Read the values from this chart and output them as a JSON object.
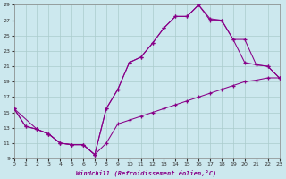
{
  "xlabel": "Windchill (Refroidissement éolien,°C)",
  "bg_color": "#cce8ee",
  "grid_color": "#aacccc",
  "line_color": "#880088",
  "xlim": [
    0,
    23
  ],
  "ylim": [
    9,
    29
  ],
  "xticks": [
    0,
    1,
    2,
    3,
    4,
    5,
    6,
    7,
    8,
    9,
    10,
    11,
    12,
    13,
    14,
    15,
    16,
    17,
    18,
    19,
    20,
    21,
    22,
    23
  ],
  "yticks": [
    9,
    11,
    13,
    15,
    17,
    19,
    21,
    23,
    25,
    27,
    29
  ],
  "s1x": [
    0,
    1,
    2,
    3,
    4,
    5,
    6,
    7,
    8,
    9,
    10,
    11,
    12,
    13,
    14,
    15,
    16,
    17,
    18,
    19,
    20,
    21,
    22,
    23
  ],
  "s1y": [
    15.5,
    13.2,
    12.8,
    12.2,
    11.0,
    10.8,
    10.8,
    9.5,
    11.0,
    13.5,
    14.0,
    14.5,
    15.0,
    15.5,
    16.0,
    16.5,
    17.0,
    17.5,
    18.0,
    18.5,
    19.0,
    19.2,
    19.5,
    19.5
  ],
  "s2x": [
    0,
    1,
    2,
    3,
    4,
    5,
    6,
    7,
    8,
    9,
    10,
    11,
    12,
    13,
    14,
    15,
    16,
    17,
    18,
    19,
    20,
    21,
    22,
    23
  ],
  "s2y": [
    15.5,
    13.2,
    12.8,
    12.2,
    11.0,
    10.8,
    10.8,
    9.5,
    15.5,
    18.0,
    21.5,
    22.2,
    24.0,
    26.0,
    27.5,
    27.5,
    29.0,
    27.0,
    27.0,
    24.5,
    21.5,
    21.2,
    21.0,
    19.5
  ],
  "s3x": [
    0,
    2,
    3,
    4,
    5,
    6,
    7,
    8,
    9,
    10,
    11,
    12,
    13,
    14,
    15,
    16,
    17,
    18,
    19,
    20,
    21,
    22,
    23
  ],
  "s3y": [
    15.5,
    12.8,
    12.2,
    11.0,
    10.8,
    10.8,
    9.5,
    15.5,
    18.0,
    21.5,
    22.2,
    24.0,
    26.0,
    27.5,
    27.5,
    29.0,
    27.2,
    27.0,
    24.5,
    24.5,
    21.2,
    21.0,
    19.5
  ]
}
